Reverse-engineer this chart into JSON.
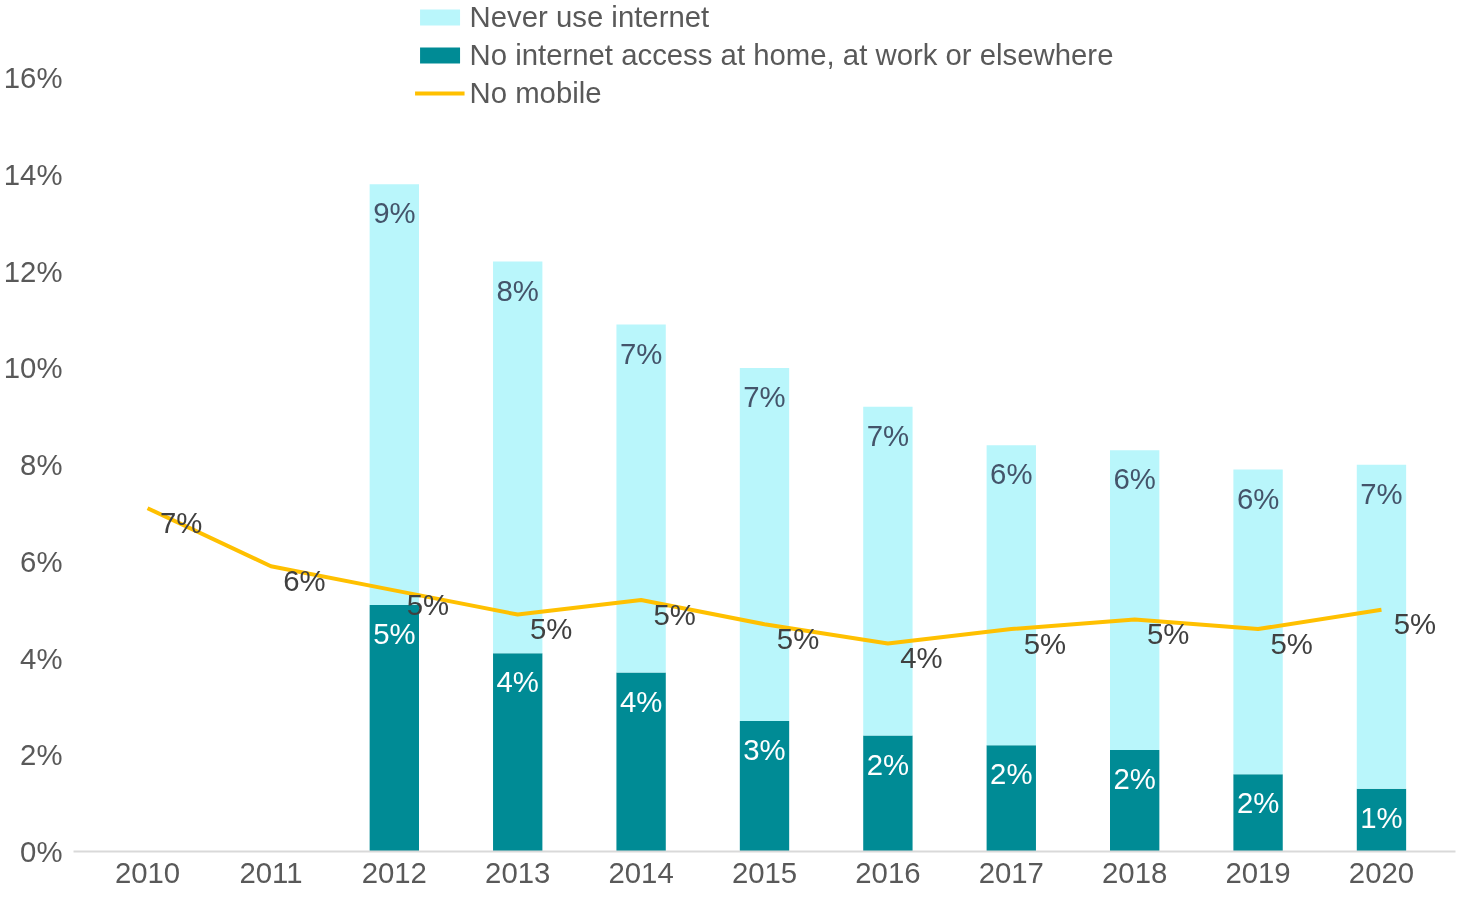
{
  "chart_data": {
    "type": "bar",
    "stacked": true,
    "categories": [
      "2010",
      "2011",
      "2012",
      "2013",
      "2014",
      "2015",
      "2016",
      "2017",
      "2018",
      "2019",
      "2020"
    ],
    "ylim": [
      0,
      17.6
    ],
    "yticks": [
      {
        "value": 0,
        "label": "0%"
      },
      {
        "value": 2,
        "label": "2%"
      },
      {
        "value": 4,
        "label": "4%"
      },
      {
        "value": 6,
        "label": "6%"
      },
      {
        "value": 8,
        "label": "8%"
      },
      {
        "value": 10,
        "label": "10%"
      },
      {
        "value": 12,
        "label": "12%"
      },
      {
        "value": 14,
        "label": "14%"
      },
      {
        "value": 16,
        "label": "16%"
      }
    ],
    "grid": false,
    "legend": "top",
    "series": [
      {
        "name": "No internet access at home, at work or elsewhere",
        "color": "#008b95",
        "values": [
          null,
          null,
          5.1,
          4.1,
          3.7,
          2.7,
          2.4,
          2.2,
          2.1,
          1.6,
          1.3
        ],
        "value_labels": [
          null,
          null,
          "5%",
          "4%",
          "4%",
          "3%",
          "2%",
          "2%",
          "2%",
          "2%",
          "1%"
        ]
      },
      {
        "name": "Never use internet",
        "color": "#b9f6fb",
        "values": [
          null,
          null,
          8.7,
          8.1,
          7.2,
          7.3,
          6.8,
          6.2,
          6.2,
          6.3,
          6.7
        ],
        "value_labels": [
          null,
          null,
          "9%",
          "8%",
          "7%",
          "7%",
          "7%",
          "6%",
          "6%",
          "6%",
          "7%"
        ]
      },
      {
        "name": "No mobile",
        "type": "line",
        "color": "#ffc000",
        "values": [
          7.1,
          5.9,
          5.4,
          4.9,
          5.2,
          4.7,
          4.3,
          4.6,
          4.8,
          4.6,
          5.0
        ],
        "value_labels": [
          "7%",
          "6%",
          "5%",
          "5%",
          "5%",
          "5%",
          "4%",
          "5%",
          "5%",
          "5%",
          "5%"
        ]
      }
    ]
  }
}
